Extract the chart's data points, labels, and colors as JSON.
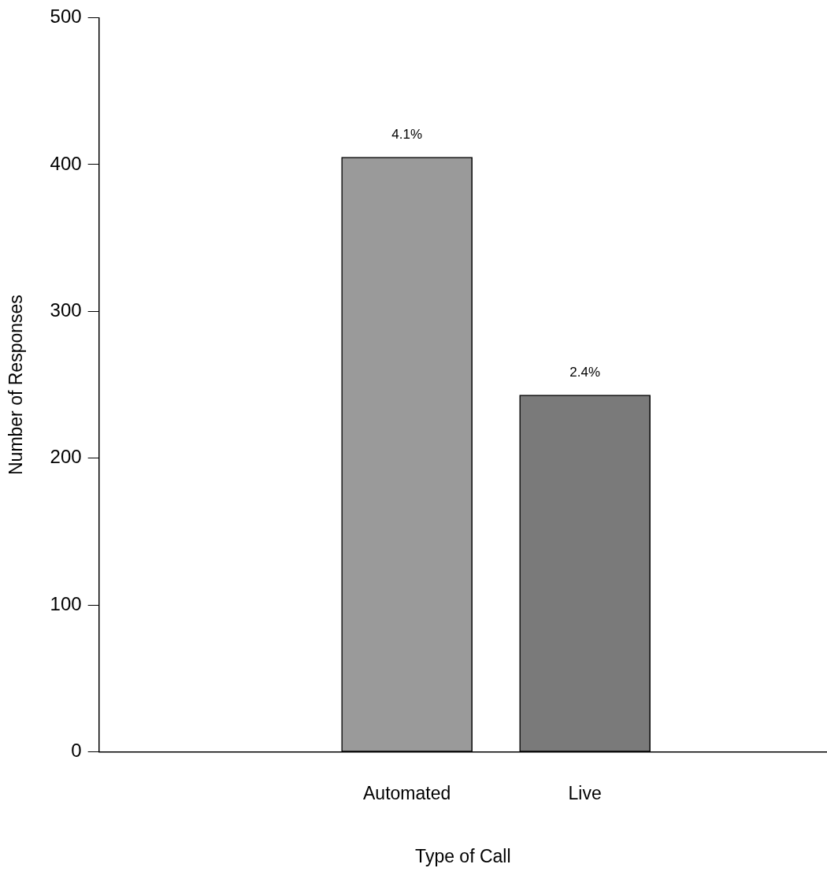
{
  "chart_data": {
    "type": "bar",
    "xlabel": "Type of Call",
    "ylabel": "Number of Responses",
    "categories": [
      "Automated",
      "Live"
    ],
    "values": [
      405,
      243
    ],
    "annotations": [
      "4.1%",
      "2.4%"
    ],
    "colors": [
      "#9a9a9a",
      "#7a7a7a"
    ],
    "ylim": [
      0,
      500
    ],
    "yticks": [
      0,
      100,
      200,
      300,
      400,
      500
    ],
    "grid": false,
    "legend": false
  }
}
